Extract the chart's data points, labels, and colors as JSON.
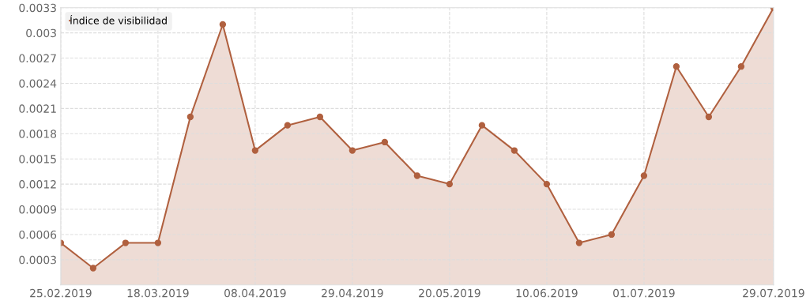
{
  "chart_data": {
    "type": "area",
    "x": [
      "2019-02-25",
      "2019-03-04",
      "2019-03-11",
      "2019-03-18",
      "2019-03-25",
      "2019-04-01",
      "2019-04-08",
      "2019-04-15",
      "2019-04-22",
      "2019-04-29",
      "2019-05-06",
      "2019-05-13",
      "2019-05-20",
      "2019-05-27",
      "2019-06-03",
      "2019-06-10",
      "2019-06-17",
      "2019-06-24",
      "2019-07-01",
      "2019-07-08",
      "2019-07-15",
      "2019-07-22",
      "2019-07-29"
    ],
    "series": [
      {
        "name": "Índice de visibilidad",
        "color": "#b0603f",
        "values": [
          0.0005,
          0.0002,
          0.0005,
          0.0005,
          0.002,
          0.0031,
          0.0016,
          0.0019,
          0.002,
          0.0016,
          0.0017,
          0.0013,
          0.0012,
          0.0019,
          0.0016,
          0.0012,
          0.0005,
          0.0006,
          0.0013,
          0.0026,
          0.002,
          0.0026,
          0.0033
        ]
      }
    ],
    "xlim": [
      "2019-02-25",
      "2019-07-29"
    ],
    "xticks": [
      {
        "value": "2019-02-25",
        "label": "25.02.2019"
      },
      {
        "value": "2019-03-18",
        "label": "18.03.2019"
      },
      {
        "value": "2019-04-08",
        "label": "08.04.2019"
      },
      {
        "value": "2019-04-29",
        "label": "29.04.2019"
      },
      {
        "value": "2019-05-20",
        "label": "20.05.2019"
      },
      {
        "value": "2019-06-10",
        "label": "10.06.2019"
      },
      {
        "value": "2019-07-01",
        "label": "01.07.2019"
      },
      {
        "value": "2019-07-29",
        "label": "29.07.2019"
      }
    ],
    "ylim": [
      0,
      0.0033
    ],
    "yticks": [
      0.0003,
      0.0006,
      0.0009,
      0.0012,
      0.0015,
      0.0018,
      0.0021,
      0.0024,
      0.0027,
      0.003,
      0.0033
    ],
    "grid": true,
    "legend": "top left",
    "marker": "circle",
    "line_style": "solid"
  }
}
